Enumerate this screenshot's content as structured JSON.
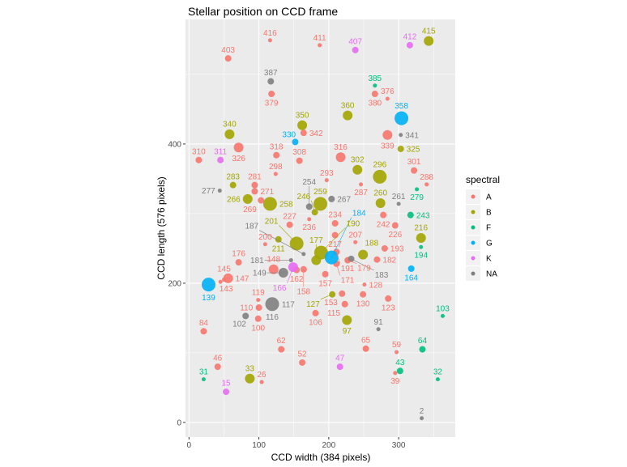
{
  "chart_data": {
    "type": "scatter",
    "title": "Stellar position on CCD frame",
    "xlabel": "CCD width (384 pixels)",
    "ylabel": "CCD length (576 pixels)",
    "xlim": [
      -5,
      381
    ],
    "ylim": [
      -21,
      579
    ],
    "xticks": [
      0,
      100,
      200,
      300
    ],
    "yticks": [
      0,
      200,
      400
    ],
    "grid": true,
    "legend": {
      "title": "spectral",
      "placement": "right",
      "entries": [
        {
          "label": "A",
          "color": "#F8766D"
        },
        {
          "label": "B",
          "color": "#A3A500"
        },
        {
          "label": "F",
          "color": "#00BF7D"
        },
        {
          "label": "G",
          "color": "#00B0F6"
        },
        {
          "label": "K",
          "color": "#E76BF3"
        },
        {
          "label": "NA",
          "color": "#7F7F7F"
        }
      ]
    },
    "points": [
      [
        "416",
        116,
        549,
        "A",
        1
      ],
      [
        "411",
        187,
        542,
        "A",
        1
      ],
      [
        "403",
        56,
        523,
        "A",
        2
      ],
      [
        "379",
        118,
        472,
        "A",
        2
      ],
      [
        "326",
        71,
        395,
        "A",
        3
      ],
      [
        "342",
        164,
        416,
        "A",
        2
      ],
      [
        "380",
        266,
        472,
        "A",
        2
      ],
      [
        "376",
        284,
        465,
        "A",
        1
      ],
      [
        "339",
        284,
        413,
        "A",
        3
      ],
      [
        "301",
        322,
        362,
        "A",
        2
      ],
      [
        "288",
        340,
        342,
        "A",
        1
      ],
      [
        "316",
        217,
        381,
        "A",
        3
      ],
      [
        "293",
        197,
        348,
        "A",
        1
      ],
      [
        "287",
        246,
        342,
        "A",
        1
      ],
      [
        "310",
        14,
        377,
        "A",
        2
      ],
      [
        "318",
        125,
        384,
        "A",
        2
      ],
      [
        "308",
        158,
        376,
        "A",
        2
      ],
      [
        "298",
        124,
        357,
        "A",
        1
      ],
      [
        "281",
        94,
        341,
        "A",
        2
      ],
      [
        "271",
        94,
        332,
        "A",
        2
      ],
      [
        "269",
        103,
        319,
        "A",
        2
      ],
      [
        "227",
        144,
        284,
        "A",
        2
      ],
      [
        "236",
        172,
        292,
        "A",
        1
      ],
      [
        "242",
        278,
        298,
        "A",
        2
      ],
      [
        "226",
        295,
        283,
        "A",
        2
      ],
      [
        "234",
        209,
        286,
        "A",
        2
      ],
      [
        "217",
        209,
        269,
        "A",
        2
      ],
      [
        "207",
        238,
        259,
        "A",
        1
      ],
      [
        "191",
        211,
        245,
        "A",
        2
      ],
      [
        "179",
        227,
        233,
        "A",
        2
      ],
      [
        "182",
        269,
        234,
        "A",
        2
      ],
      [
        "193",
        280,
        250,
        "A",
        2
      ],
      [
        "157",
        195,
        213,
        "A",
        2
      ],
      [
        "171",
        211,
        228,
        "A",
        2
      ],
      [
        "128",
        251,
        198,
        "A",
        1
      ],
      [
        "130",
        249,
        184,
        "A",
        2
      ],
      [
        "153",
        219,
        185,
        "A",
        2
      ],
      [
        "115",
        223,
        170,
        "A",
        2
      ],
      [
        "123",
        285,
        178,
        "A",
        2
      ],
      [
        "65",
        253,
        106,
        "A",
        2
      ],
      [
        "59",
        297,
        101,
        "A",
        1
      ],
      [
        "39",
        295,
        71,
        "A",
        1
      ],
      [
        "106",
        181,
        157,
        "A",
        2
      ],
      [
        "52",
        162,
        86,
        "A",
        2
      ],
      [
        "62",
        132,
        105,
        "A",
        2
      ],
      [
        "26",
        104,
        58,
        "A",
        1
      ],
      [
        "46",
        41,
        80,
        "A",
        2
      ],
      [
        "84",
        21,
        131,
        "A",
        2
      ],
      [
        "100",
        99,
        149,
        "A",
        2
      ],
      [
        "110",
        100,
        165,
        "A",
        2
      ],
      [
        "119",
        99,
        176,
        "A",
        1
      ],
      [
        "143",
        45,
        202,
        "A",
        1
      ],
      [
        "147",
        56,
        207,
        "A",
        3
      ],
      [
        "145",
        50,
        205,
        "A",
        1
      ],
      [
        "176",
        71,
        230,
        "A",
        2
      ],
      [
        "200",
        109,
        256,
        "A",
        1
      ],
      [
        "148",
        121,
        220,
        "A",
        3
      ],
      [
        "162",
        154,
        219,
        "A",
        2
      ],
      [
        "158",
        164,
        220,
        "A",
        2
      ],
      [
        "188",
        249,
        241,
        "B",
        3
      ],
      [
        "127",
        205,
        184,
        "B",
        2
      ],
      [
        "97",
        226,
        147,
        "B",
        3
      ],
      [
        "33",
        87,
        63,
        "B",
        3
      ],
      [
        "211",
        128,
        263,
        "B",
        2
      ],
      [
        "201",
        154,
        257,
        "B",
        4
      ],
      [
        "177",
        182,
        233,
        "B",
        3
      ],
      [
        "190",
        189,
        244,
        "B",
        4
      ],
      [
        "258",
        116,
        314,
        "B",
        4
      ],
      [
        "266",
        84,
        321,
        "B",
        3
      ],
      [
        "283",
        63,
        341,
        "B",
        2
      ],
      [
        "259",
        188,
        314,
        "B",
        4
      ],
      [
        "246",
        180,
        302,
        "B",
        2
      ],
      [
        "302",
        241,
        363,
        "B",
        3
      ],
      [
        "296",
        273,
        353,
        "B",
        4
      ],
      [
        "260",
        274,
        315,
        "B",
        3
      ],
      [
        "216",
        332,
        265,
        "B",
        3
      ],
      [
        "360",
        227,
        441,
        "B",
        3
      ],
      [
        "350",
        162,
        427,
        "B",
        3
      ],
      [
        "340",
        58,
        414,
        "B",
        3
      ],
      [
        "415",
        343,
        548,
        "B",
        3
      ],
      [
        "325",
        303,
        393,
        "B",
        2
      ],
      [
        "43",
        302,
        74,
        "F",
        2
      ],
      [
        "64",
        334,
        105,
        "F",
        2
      ],
      [
        "103",
        363,
        153,
        "F",
        1
      ],
      [
        "32",
        356,
        62,
        "F",
        1
      ],
      [
        "31",
        21,
        62,
        "F",
        1
      ],
      [
        "279",
        326,
        335,
        "F",
        1
      ],
      [
        "243",
        317,
        298,
        "F",
        2
      ],
      [
        "194",
        332,
        252,
        "F",
        1
      ],
      [
        "385",
        266,
        484,
        "F",
        1
      ],
      [
        "139",
        28,
        198,
        "G",
        4
      ],
      [
        "184",
        204,
        237,
        "G",
        4
      ],
      [
        "164",
        318,
        221,
        "G",
        2
      ],
      [
        "330",
        152,
        403,
        "G",
        2
      ],
      [
        "358",
        304,
        437,
        "G",
        4
      ],
      [
        "47",
        216,
        80,
        "K",
        2
      ],
      [
        "15",
        53,
        44,
        "K",
        2
      ],
      [
        "166",
        149,
        223,
        "K",
        3
      ],
      [
        "311",
        45,
        377,
        "K",
        2
      ],
      [
        "407",
        238,
        535,
        "K",
        2
      ],
      [
        "412",
        316,
        542,
        "K",
        2
      ],
      [
        "183",
        232,
        235,
        "NA",
        2
      ],
      [
        "91",
        271,
        134,
        "NA",
        1
      ],
      [
        "2",
        333,
        6,
        "NA",
        1
      ],
      [
        "102",
        81,
        153,
        "NA",
        2
      ],
      [
        "116",
        119,
        170,
        "NA",
        4
      ],
      [
        "149",
        135,
        215,
        "NA",
        3
      ],
      [
        "181",
        146,
        233,
        "NA",
        1
      ],
      [
        "187",
        164,
        242,
        "NA",
        1
      ],
      [
        "277",
        44,
        333,
        "NA",
        1
      ],
      [
        "254",
        172,
        310,
        "NA",
        2
      ],
      [
        "267",
        204,
        321,
        "NA",
        2
      ],
      [
        "261",
        300,
        314,
        "NA",
        1
      ],
      [
        "387",
        117,
        490,
        "NA",
        2
      ],
      [
        "341",
        303,
        413,
        "NA",
        1
      ]
    ],
    "extra_labels": [
      [
        "117",
        119,
        170,
        "NA"
      ]
    ]
  }
}
